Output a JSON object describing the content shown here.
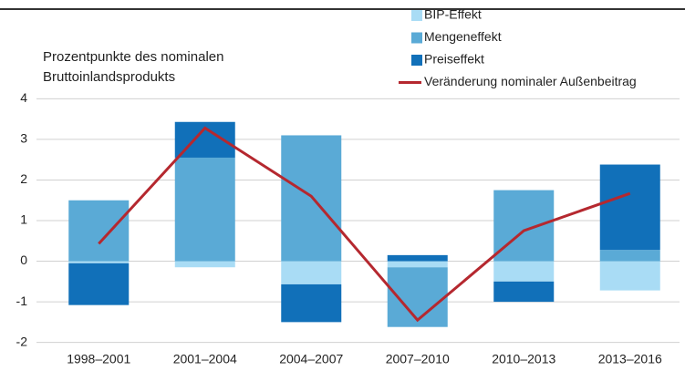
{
  "chart_data": {
    "type": "bar",
    "stacked": true,
    "ylabel": "Prozentpunkte des nominalen Bruttoinlandsprodukts",
    "categories": [
      "1998–2001",
      "2001–2004",
      "2004–2007",
      "2007–2010",
      "2010–2013",
      "2013–2016"
    ],
    "series": [
      {
        "name": "BIP-Effekt",
        "color": "#a9dcf5",
        "values": [
          -0.05,
          -0.15,
          -0.57,
          -0.15,
          -0.5,
          -0.72
        ]
      },
      {
        "name": "Mengeneffekt",
        "color": "#5aaad6",
        "values": [
          1.5,
          2.55,
          3.1,
          -1.47,
          1.75,
          0.28
        ]
      },
      {
        "name": "Preiseffekt",
        "color": "#1170b9",
        "values": [
          -1.03,
          0.88,
          -0.93,
          0.15,
          -0.5,
          2.1
        ]
      },
      {
        "name": "Veränderung nominaler Außenbeitrag",
        "type": "line",
        "color": "#b5282f",
        "values": [
          0.43,
          3.28,
          1.6,
          -1.45,
          0.75,
          1.67
        ]
      }
    ],
    "ylim": [
      -2.3,
      4.3
    ],
    "yticks": [
      -2,
      -1,
      0,
      1,
      2,
      3,
      4
    ],
    "grid": true,
    "legend": "top-right"
  }
}
